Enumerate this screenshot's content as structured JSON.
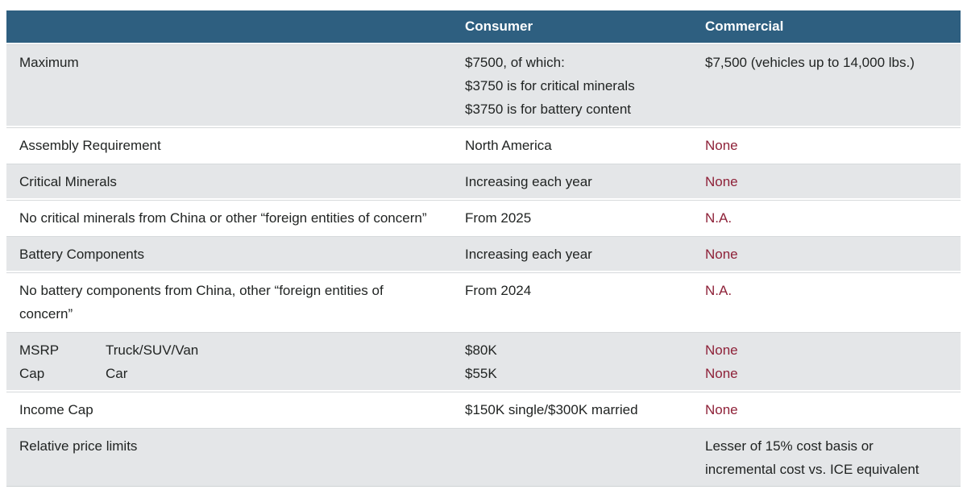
{
  "table": {
    "columns": [
      {
        "label": ""
      },
      {
        "label": "Consumer"
      },
      {
        "label": "Commercial"
      }
    ],
    "rows": [
      {
        "label": "Maximum",
        "consumer": [
          "$7500, of which:",
          "$3750 is for critical minerals",
          "$3750 is for battery content"
        ],
        "commercial": [
          "$7,500 (vehicles up to 14,000 lbs.)"
        ],
        "commercial_red": false,
        "shaded": true
      },
      {
        "label": "Assembly Requirement",
        "consumer": [
          "North America"
        ],
        "commercial": [
          "None"
        ],
        "commercial_red": true,
        "shaded": false
      },
      {
        "label": "Critical Minerals",
        "consumer": [
          "Increasing each year"
        ],
        "commercial": [
          "None"
        ],
        "commercial_red": true,
        "shaded": true
      },
      {
        "label": "No critical minerals from China or other “foreign entities of concern”",
        "consumer": [
          "From 2025"
        ],
        "commercial": [
          "N.A."
        ],
        "commercial_red": true,
        "shaded": false
      },
      {
        "label": "Battery Components",
        "consumer": [
          "Increasing each year"
        ],
        "commercial": [
          "None"
        ],
        "commercial_red": true,
        "shaded": true
      },
      {
        "label": "No battery components from China, other “foreign entities of concern”",
        "consumer": [
          "From 2024"
        ],
        "commercial": [
          "N.A."
        ],
        "commercial_red": true,
        "shaded": false
      },
      {
        "label": "MSRP Cap",
        "sublabels": [
          "Truck/SUV/Van",
          "Car"
        ],
        "consumer": [
          "$80K",
          "$55K"
        ],
        "commercial": [
          "None",
          "None"
        ],
        "commercial_red": true,
        "shaded": true
      },
      {
        "label": "Income Cap",
        "consumer": [
          "$150K single/$300K married"
        ],
        "commercial": [
          "None"
        ],
        "commercial_red": true,
        "shaded": false
      },
      {
        "label": "Relative price limits",
        "consumer": [],
        "commercial": [
          "Lesser of 15% cost basis or incremental cost vs. ICE equivalent"
        ],
        "commercial_red": false,
        "shaded": true
      }
    ],
    "colors": {
      "header_bg": "#2e5f80",
      "header_text": "#ffffff",
      "shaded_row_bg": "#e4e6e8",
      "accent_red": "#8e2138",
      "body_text": "#212423",
      "hairline": "#d6d9db"
    }
  }
}
